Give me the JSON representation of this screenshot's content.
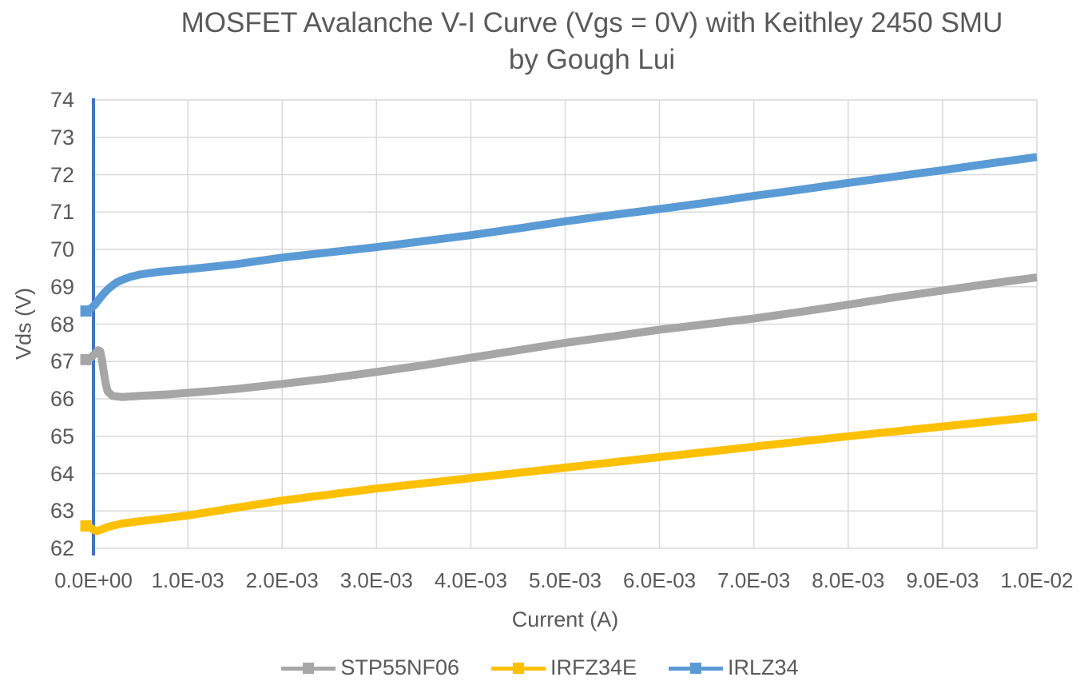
{
  "chart_data": {
    "type": "line",
    "title": "MOSFET Avalanche V-I Curve (Vgs = 0V) with Keithley 2450 SMU",
    "subtitle": "by Gough Lui",
    "xlabel": "Current (A)",
    "ylabel": "Vds (V)",
    "xlim": [
      0,
      0.01
    ],
    "ylim": [
      62,
      74
    ],
    "grid": true,
    "legend_position": "bottom",
    "colors": {
      "gridline": "#D9D9D9",
      "axis_line": "#4472C4",
      "text": "#595959"
    },
    "x_axis": {
      "ticks": [
        {
          "value": 0.0,
          "label": "0.0E+00"
        },
        {
          "value": 0.001,
          "label": "1.0E-03"
        },
        {
          "value": 0.002,
          "label": "2.0E-03"
        },
        {
          "value": 0.003,
          "label": "3.0E-03"
        },
        {
          "value": 0.004,
          "label": "4.0E-03"
        },
        {
          "value": 0.005,
          "label": "5.0E-03"
        },
        {
          "value": 0.006,
          "label": "6.0E-03"
        },
        {
          "value": 0.007,
          "label": "7.0E-03"
        },
        {
          "value": 0.008,
          "label": "8.0E-03"
        },
        {
          "value": 0.009,
          "label": "9.0E-03"
        },
        {
          "value": 0.01,
          "label": "1.0E-02"
        }
      ]
    },
    "y_axis": {
      "ticks": [
        62,
        63,
        64,
        65,
        66,
        67,
        68,
        69,
        70,
        71,
        72,
        73,
        74
      ]
    },
    "series": [
      {
        "name": "STP55NF06",
        "color": "#A6A6A6",
        "marker": "square",
        "points": [
          [
            -8e-05,
            67.05
          ],
          [
            -3e-05,
            67.1
          ],
          [
            2e-05,
            67.22
          ],
          [
            5e-05,
            67.3
          ],
          [
            7e-05,
            67.28
          ],
          [
            9e-05,
            67.05
          ],
          [
            0.00011,
            66.7
          ],
          [
            0.00013,
            66.4
          ],
          [
            0.00015,
            66.2
          ],
          [
            0.0002,
            66.08
          ],
          [
            0.0003,
            66.05
          ],
          [
            0.0005,
            66.08
          ],
          [
            0.0008,
            66.12
          ],
          [
            0.001,
            66.16
          ],
          [
            0.0015,
            66.26
          ],
          [
            0.002,
            66.4
          ],
          [
            0.0025,
            66.55
          ],
          [
            0.003,
            66.72
          ],
          [
            0.0035,
            66.9
          ],
          [
            0.004,
            67.1
          ],
          [
            0.0045,
            67.3
          ],
          [
            0.005,
            67.5
          ],
          [
            0.0055,
            67.67
          ],
          [
            0.006,
            67.85
          ],
          [
            0.0065,
            68.0
          ],
          [
            0.007,
            68.15
          ],
          [
            0.0075,
            68.33
          ],
          [
            0.008,
            68.52
          ],
          [
            0.0085,
            68.72
          ],
          [
            0.009,
            68.9
          ],
          [
            0.0095,
            69.08
          ],
          [
            0.01,
            69.25
          ]
        ]
      },
      {
        "name": "IRFZ34E",
        "color": "#FFC000",
        "marker": "square",
        "points": [
          [
            -8e-05,
            62.6
          ],
          [
            -4e-05,
            62.56
          ],
          [
            0.0,
            62.5
          ],
          [
            4e-05,
            62.46
          ],
          [
            8e-05,
            62.5
          ],
          [
            0.00015,
            62.57
          ],
          [
            0.0002,
            62.6
          ],
          [
            0.0003,
            62.66
          ],
          [
            0.0005,
            62.73
          ],
          [
            0.0008,
            62.82
          ],
          [
            0.001,
            62.88
          ],
          [
            0.0015,
            63.08
          ],
          [
            0.002,
            63.28
          ],
          [
            0.0025,
            63.44
          ],
          [
            0.003,
            63.6
          ],
          [
            0.0035,
            63.74
          ],
          [
            0.004,
            63.88
          ],
          [
            0.0045,
            64.02
          ],
          [
            0.005,
            64.16
          ],
          [
            0.0055,
            64.3
          ],
          [
            0.006,
            64.44
          ],
          [
            0.0065,
            64.58
          ],
          [
            0.007,
            64.72
          ],
          [
            0.0075,
            64.86
          ],
          [
            0.008,
            65.0
          ],
          [
            0.0085,
            65.13
          ],
          [
            0.009,
            65.26
          ],
          [
            0.0095,
            65.39
          ],
          [
            0.01,
            65.52
          ]
        ]
      },
      {
        "name": "IRLZ34",
        "color": "#5B9BD5",
        "marker": "square",
        "points": [
          [
            -8e-05,
            68.35
          ],
          [
            -4e-05,
            68.4
          ],
          [
            0.0,
            68.48
          ],
          [
            4e-05,
            68.6
          ],
          [
            8e-05,
            68.73
          ],
          [
            0.00012,
            68.85
          ],
          [
            0.00016,
            68.95
          ],
          [
            0.0002,
            69.03
          ],
          [
            0.00025,
            69.12
          ],
          [
            0.0003,
            69.18
          ],
          [
            0.0004,
            69.27
          ],
          [
            0.0005,
            69.33
          ],
          [
            0.0007,
            69.4
          ],
          [
            0.001,
            69.47
          ],
          [
            0.0015,
            69.6
          ],
          [
            0.002,
            69.78
          ],
          [
            0.0025,
            69.92
          ],
          [
            0.003,
            70.06
          ],
          [
            0.0035,
            70.22
          ],
          [
            0.004,
            70.38
          ],
          [
            0.0045,
            70.56
          ],
          [
            0.005,
            70.75
          ],
          [
            0.0055,
            70.92
          ],
          [
            0.006,
            71.08
          ],
          [
            0.0065,
            71.25
          ],
          [
            0.007,
            71.43
          ],
          [
            0.0075,
            71.6
          ],
          [
            0.008,
            71.78
          ],
          [
            0.0085,
            71.95
          ],
          [
            0.009,
            72.12
          ],
          [
            0.0095,
            72.3
          ],
          [
            0.01,
            72.47
          ]
        ]
      }
    ]
  }
}
